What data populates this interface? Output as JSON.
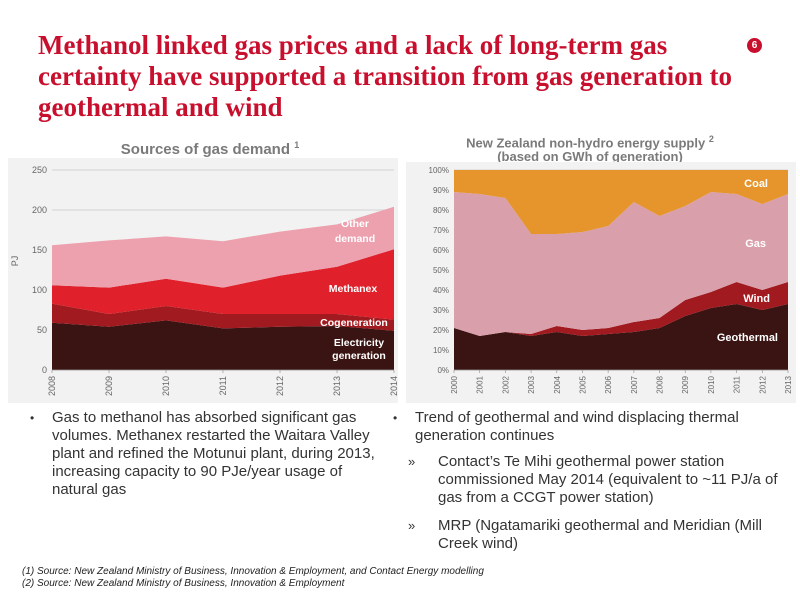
{
  "slide": {
    "title": "Methanol linked gas prices and a lack of long-term gas certainty have supported a transition from gas generation to geothermal and wind",
    "page_number": "6"
  },
  "chart1": {
    "title": "Sources of gas demand",
    "footnote_ref": "1"
  },
  "chart2": {
    "title_line1": "New Zealand non-hydro energy supply",
    "title_line2": "(based on GWh of generation)",
    "footnote_ref": "2"
  },
  "chart_data": [
    {
      "type": "area",
      "stacked": true,
      "title": "Sources of gas demand",
      "ylabel": "PJ",
      "x": [
        "2008",
        "2009",
        "2010",
        "2011",
        "2012",
        "2013",
        "2014"
      ],
      "ylim": [
        0,
        250
      ],
      "yticks": [
        0,
        50,
        100,
        150,
        200,
        250
      ],
      "grid": true,
      "series": [
        {
          "name": "Electricity generation",
          "color": "#3a1313",
          "values": [
            59,
            54,
            62,
            52,
            54,
            55,
            49
          ]
        },
        {
          "name": "Cogeneration",
          "color": "#a11a1f",
          "values": [
            24,
            16,
            18,
            18,
            16,
            15,
            14
          ]
        },
        {
          "name": "Methanex",
          "color": "#e0202b",
          "values": [
            23,
            33,
            34,
            33,
            48,
            59,
            88
          ]
        },
        {
          "name": "Other demand",
          "color": "#eda1ae",
          "values": [
            50,
            59,
            53,
            58,
            55,
            53,
            53
          ]
        }
      ]
    },
    {
      "type": "area",
      "stacked": true,
      "percent": true,
      "title": "New Zealand non-hydro energy supply (based on GWh of generation)",
      "x": [
        "2000",
        "2001",
        "2002",
        "2003",
        "2004",
        "2005",
        "2006",
        "2007",
        "2008",
        "2009",
        "2010",
        "2011",
        "2012",
        "2013"
      ],
      "yticks": [
        "0%",
        "10%",
        "20%",
        "30%",
        "40%",
        "50%",
        "60%",
        "70%",
        "80%",
        "90%",
        "100%"
      ],
      "ylim": [
        0,
        100
      ],
      "grid": true,
      "series": [
        {
          "name": "Geothermal",
          "color": "#3a1313",
          "values": [
            21,
            17,
            19,
            17,
            19,
            17,
            18,
            19,
            21,
            27,
            31,
            33,
            30,
            33
          ]
        },
        {
          "name": "Wind",
          "color": "#a11a1f",
          "values": [
            0,
            0,
            0,
            1,
            3,
            3,
            3,
            5,
            5,
            8,
            8,
            11,
            10,
            11
          ]
        },
        {
          "name": "Gas",
          "color": "#d9a0ac",
          "values": [
            68,
            71,
            67,
            50,
            46,
            49,
            51,
            60,
            51,
            47,
            50,
            44,
            43,
            44
          ]
        },
        {
          "name": "Coal",
          "color": "#e5952b",
          "values": [
            11,
            12,
            14,
            32,
            32,
            31,
            28,
            16,
            23,
            18,
            11,
            12,
            17,
            12
          ]
        }
      ],
      "labels": {
        "coal": "Coal",
        "gas": "Gas",
        "wind": "Wind",
        "geothermal": "Geothermal"
      }
    }
  ],
  "chart1_labels": {
    "other_line1": "Other",
    "other_line2": "demand",
    "methanex": "Methanex",
    "cogeneration": "Cogeneration",
    "electricity_line1": "Electricity",
    "electricity_line2": "generation"
  },
  "bullets_left": [
    "Gas to methanol has absorbed significant gas volumes. Methanex restarted the Waitara Valley plant and refined the Motunui plant, during 2013, increasing capacity to 90 PJe/year usage of natural gas"
  ],
  "bullets_right": {
    "main": "Trend of geothermal and wind displacing thermal generation continues",
    "sub": [
      "Contact’s Te Mihi geothermal power station commissioned May 2014 (equivalent to ~11 PJ/a of gas from a CCGT power station)",
      "MRP (Ngatamariki geothermal  and Meridian (Mill Creek wind)"
    ]
  },
  "footnotes": [
    "(1)  Source: New Zealand Ministry of Business, Innovation & Employment, and Contact Energy modelling",
    "(2)  Source: New Zealand Ministry of Business, Innovation & Employment"
  ],
  "icons": {
    "bullet": "bullet-dot",
    "sub_bullet": "double-arrow"
  }
}
